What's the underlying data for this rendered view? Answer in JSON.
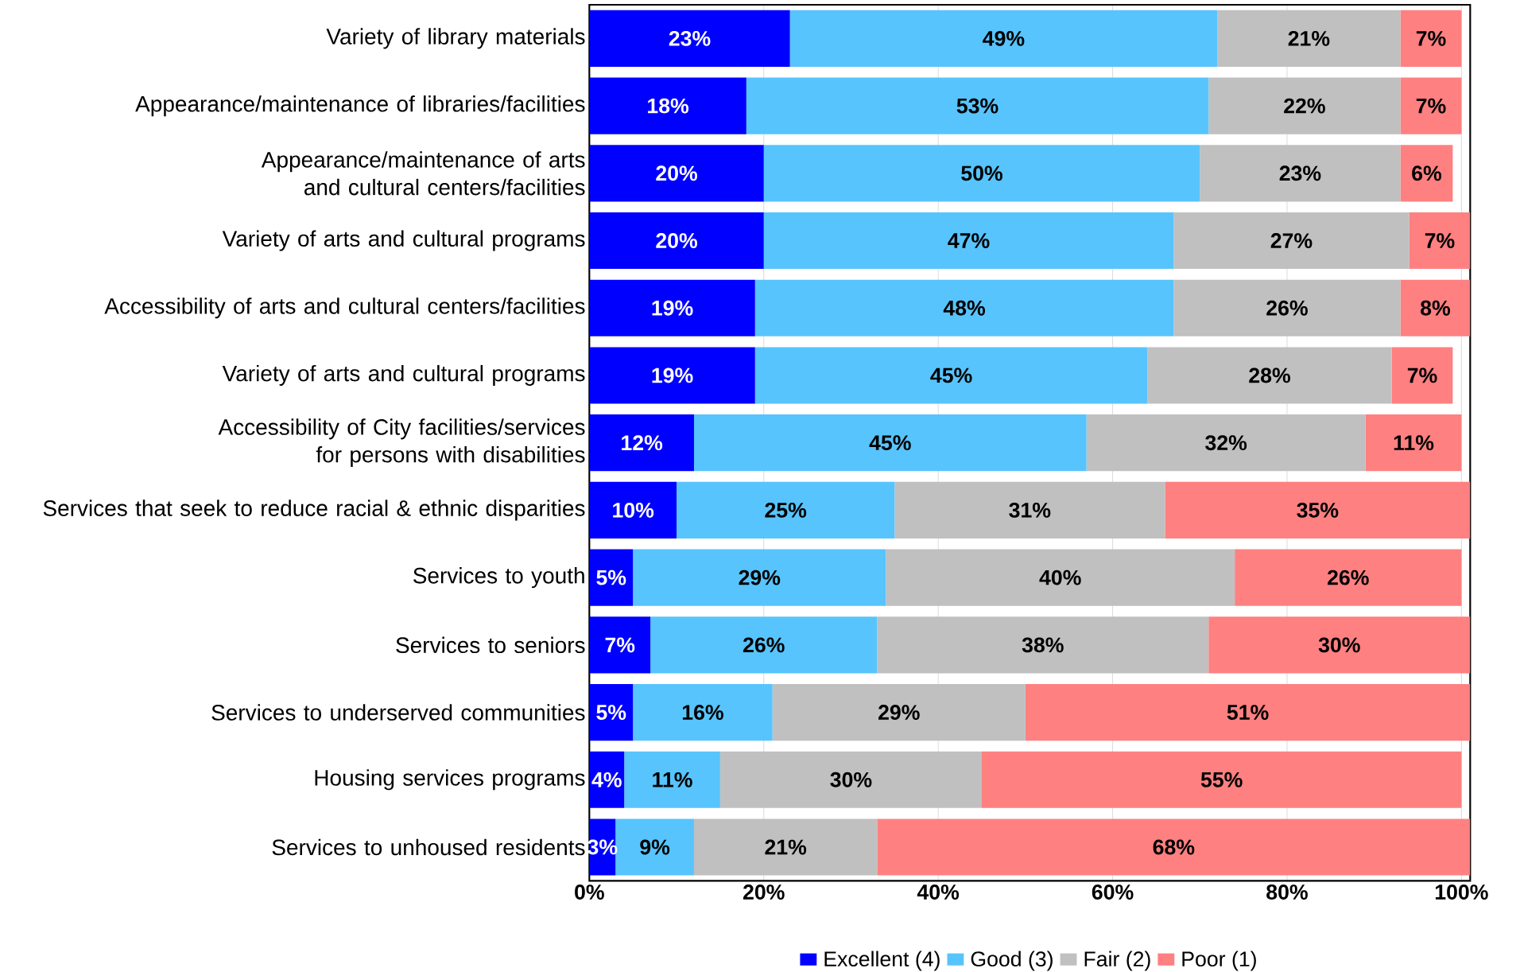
{
  "chart_data": {
    "type": "bar",
    "orientation": "horizontal",
    "stacked": true,
    "categories": [
      "Variety of library materials",
      "Appearance/maintenance of libraries/facilities",
      "Appearance/maintenance of arts and cultural centers/facilities",
      "Variety of arts and cultural programs",
      "Accessibility of arts and cultural centers/facilities",
      "Variety of arts and cultural programs",
      "Accessibility of City facilities/services for persons with disabilities",
      "Services that seek to reduce racial & ethnic disparities",
      "Services to youth",
      "Services to seniors",
      "Services to underserved communities",
      "Housing services programs",
      "Services to unhoused residents"
    ],
    "series": [
      {
        "name": "Excellent (4)",
        "color": "#0000ff",
        "values": [
          23,
          18,
          20,
          20,
          19,
          19,
          12,
          10,
          5,
          7,
          5,
          4,
          3
        ],
        "value_labels": [
          "23%",
          "18%",
          "20%",
          "20%",
          "19%",
          "19%",
          "12%",
          "10%",
          "5%",
          "7%",
          "5%",
          "4%",
          "3%"
        ]
      },
      {
        "name": "Good (3)",
        "color": "#57c4fd",
        "values": [
          49,
          53,
          50,
          47,
          48,
          45,
          45,
          25,
          29,
          26,
          16,
          11,
          9
        ],
        "value_labels": [
          "49%",
          "53%",
          "50%",
          "47%",
          "48%",
          "45%",
          "45%",
          "25%",
          "29%",
          "26%",
          "16%",
          "11%",
          "9%"
        ]
      },
      {
        "name": "Fair (2)",
        "color": "#c0c0c0",
        "values": [
          21,
          22,
          23,
          27,
          26,
          28,
          32,
          31,
          40,
          38,
          29,
          30,
          21
        ],
        "value_labels": [
          "21%",
          "22%",
          "23%",
          "27%",
          "26%",
          "28%",
          "32%",
          "31%",
          "40%",
          "38%",
          "29%",
          "30%",
          "21%"
        ]
      },
      {
        "name": "Poor (1)",
        "color": "#ff8080",
        "values": [
          7,
          7,
          6,
          7,
          8,
          7,
          11,
          35,
          26,
          30,
          51,
          55,
          68
        ],
        "value_labels": [
          "7%",
          "7%",
          "6%",
          "7%",
          "8%",
          "7%",
          "11%",
          "35%",
          "26%",
          "30%",
          "51%",
          "55%",
          "68%"
        ]
      }
    ],
    "xlim": [
      0,
      101
    ],
    "xticks": [
      {
        "value": 0,
        "label": "0%"
      },
      {
        "value": 20,
        "label": "20%"
      },
      {
        "value": 40,
        "label": "40%"
      },
      {
        "value": 60,
        "label": "60%"
      },
      {
        "value": 80,
        "label": "80%"
      },
      {
        "value": 100,
        "label": "100%"
      }
    ],
    "grid": "x",
    "legend": "bottom"
  }
}
